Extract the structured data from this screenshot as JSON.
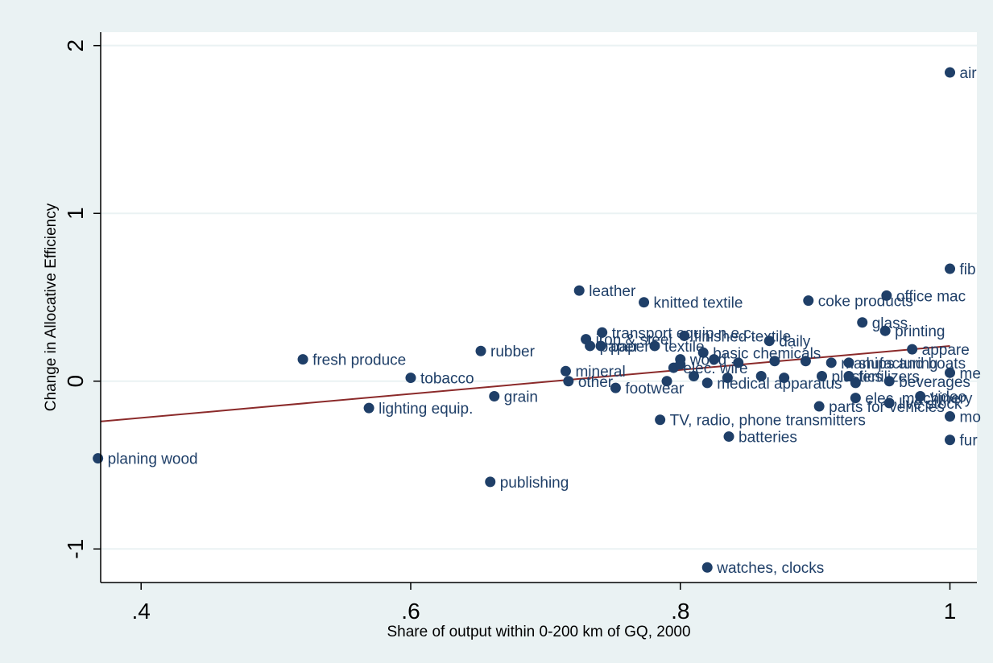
{
  "chart_data": {
    "type": "scatter",
    "title": "",
    "xlabel": "Share of output within 0-200 km of GQ, 2000",
    "ylabel": "Change in Allocative Efficiency",
    "xlim": [
      0.37,
      1.02
    ],
    "ylim": [
      -1.2,
      2.08
    ],
    "xticks": [
      0.4,
      0.6,
      0.8,
      1.0
    ],
    "xtick_labels": [
      ".4",
      ".6",
      ".8",
      "1"
    ],
    "yticks": [
      -1,
      0,
      1,
      2
    ],
    "ytick_labels": [
      "-1",
      "0",
      "1",
      "2"
    ],
    "grid": true,
    "legend": "none",
    "colors": {
      "marker": "#1f3f68",
      "fit_line": "#8b2a2a",
      "background": "#eaf2f3",
      "plot_area": "#ffffff",
      "grid": "#eaf2f3",
      "text": "#1f3f68"
    },
    "fit_line": {
      "x": [
        0.37,
        1.0
      ],
      "y": [
        -0.24,
        0.21
      ]
    },
    "points": [
      {
        "x": 1.0,
        "y": 1.84,
        "label": "air"
      },
      {
        "x": 1.0,
        "y": 0.67,
        "label": "fib"
      },
      {
        "x": 0.725,
        "y": 0.54,
        "label": "leather"
      },
      {
        "x": 0.773,
        "y": 0.47,
        "label": "knitted textile"
      },
      {
        "x": 0.895,
        "y": 0.48,
        "label": "coke products"
      },
      {
        "x": 0.953,
        "y": 0.51,
        "label": "office mac"
      },
      {
        "x": 0.935,
        "y": 0.35,
        "label": "glass"
      },
      {
        "x": 0.952,
        "y": 0.3,
        "label": "printing"
      },
      {
        "x": 0.742,
        "y": 0.29,
        "label": "transport equip n.e.c."
      },
      {
        "x": 0.73,
        "y": 0.25,
        "label": "iron & steel"
      },
      {
        "x": 0.803,
        "y": 0.27,
        "label": "finished textile"
      },
      {
        "x": 0.866,
        "y": 0.24,
        "label": "daily"
      },
      {
        "x": 0.733,
        "y": 0.21,
        "label": "paper"
      },
      {
        "x": 0.741,
        "y": 0.21,
        "label": "paper"
      },
      {
        "x": 0.781,
        "y": 0.21,
        "label": "textile"
      },
      {
        "x": 0.817,
        "y": 0.17,
        "label": "basic chemicals"
      },
      {
        "x": 0.972,
        "y": 0.19,
        "label": "appare"
      },
      {
        "x": 0.52,
        "y": 0.13,
        "label": "fresh produce"
      },
      {
        "x": 0.652,
        "y": 0.18,
        "label": "rubber"
      },
      {
        "x": 0.8,
        "y": 0.13,
        "label": "wood"
      },
      {
        "x": 0.795,
        "y": 0.08,
        "label": "elec. wire"
      },
      {
        "x": 0.8,
        "y": 0.1,
        "label": ""
      },
      {
        "x": 0.825,
        "y": 0.13,
        "label": ""
      },
      {
        "x": 0.843,
        "y": 0.11,
        "label": ""
      },
      {
        "x": 0.87,
        "y": 0.12,
        "label": ""
      },
      {
        "x": 0.893,
        "y": 0.12,
        "label": ""
      },
      {
        "x": 0.912,
        "y": 0.11,
        "label": "manufacturing"
      },
      {
        "x": 0.925,
        "y": 0.11,
        "label": "ships and boats"
      },
      {
        "x": 0.715,
        "y": 0.06,
        "label": "mineral"
      },
      {
        "x": 0.6,
        "y": 0.02,
        "label": "tobacco"
      },
      {
        "x": 0.717,
        "y": 0.0,
        "label": "other"
      },
      {
        "x": 0.79,
        "y": 0.0,
        "label": ""
      },
      {
        "x": 0.81,
        "y": 0.03,
        "label": ""
      },
      {
        "x": 0.835,
        "y": 0.02,
        "label": ""
      },
      {
        "x": 0.86,
        "y": 0.03,
        "label": ""
      },
      {
        "x": 0.877,
        "y": 0.02,
        "label": ""
      },
      {
        "x": 0.905,
        "y": 0.03,
        "label": "plastics"
      },
      {
        "x": 0.925,
        "y": 0.03,
        "label": "fertilizers"
      },
      {
        "x": 0.955,
        "y": 0.0,
        "label": "beverages"
      },
      {
        "x": 1.0,
        "y": 0.05,
        "label": "me"
      },
      {
        "x": 0.752,
        "y": -0.04,
        "label": "footwear"
      },
      {
        "x": 0.82,
        "y": -0.01,
        "label": "medical apparatus"
      },
      {
        "x": 0.93,
        "y": -0.01,
        "label": ""
      },
      {
        "x": 0.662,
        "y": -0.09,
        "label": "grain"
      },
      {
        "x": 0.569,
        "y": -0.16,
        "label": "lighting equip."
      },
      {
        "x": 0.93,
        "y": -0.1,
        "label": "elec. machinery"
      },
      {
        "x": 0.955,
        "y": -0.13,
        "label": "live stock"
      },
      {
        "x": 0.978,
        "y": -0.09,
        "label": "video"
      },
      {
        "x": 0.903,
        "y": -0.15,
        "label": "parts for vehicles"
      },
      {
        "x": 1.0,
        "y": -0.21,
        "label": "mo"
      },
      {
        "x": 0.785,
        "y": -0.23,
        "label": "TV, radio, phone transmitters"
      },
      {
        "x": 0.836,
        "y": -0.33,
        "label": "batteries"
      },
      {
        "x": 1.0,
        "y": -0.35,
        "label": "fur"
      },
      {
        "x": 0.368,
        "y": -0.46,
        "label": "planing wood"
      },
      {
        "x": 0.659,
        "y": -0.6,
        "label": "publishing"
      },
      {
        "x": 0.82,
        "y": -1.11,
        "label": "watches, clocks"
      }
    ]
  }
}
